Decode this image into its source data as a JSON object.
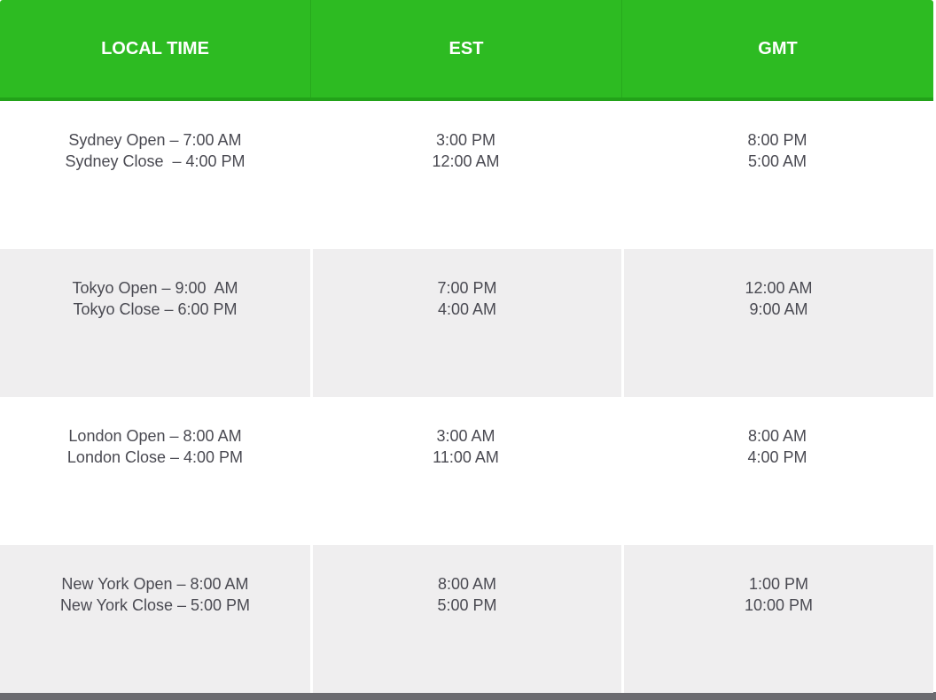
{
  "table": {
    "header": [
      "LOCAL TIME",
      "EST",
      "GMT"
    ],
    "rows": [
      [
        [
          "Sydney Open – 7:00 AM",
          "Sydney Close  – 4:00 PM"
        ],
        [
          "3:00 PM",
          "12:00 AM"
        ],
        [
          "8:00 PM",
          "5:00 AM"
        ]
      ],
      [
        [
          "Tokyo Open – 9:00  AM",
          "Tokyo Close – 6:00 PM"
        ],
        [
          "7:00 PM",
          "4:00 AM"
        ],
        [
          "12:00 AM",
          "9:00 AM"
        ]
      ],
      [
        [
          "London Open – 8:00 AM",
          "London Close – 4:00 PM"
        ],
        [
          "3:00 AM",
          "11:00 AM"
        ],
        [
          "8:00 AM",
          "4:00 PM"
        ]
      ],
      [
        [
          "New York Open – 8:00 AM",
          "New York Close – 5:00 PM"
        ],
        [
          "8:00 AM",
          "5:00 PM"
        ],
        [
          "1:00 PM",
          "10:00 PM"
        ]
      ]
    ]
  }
}
